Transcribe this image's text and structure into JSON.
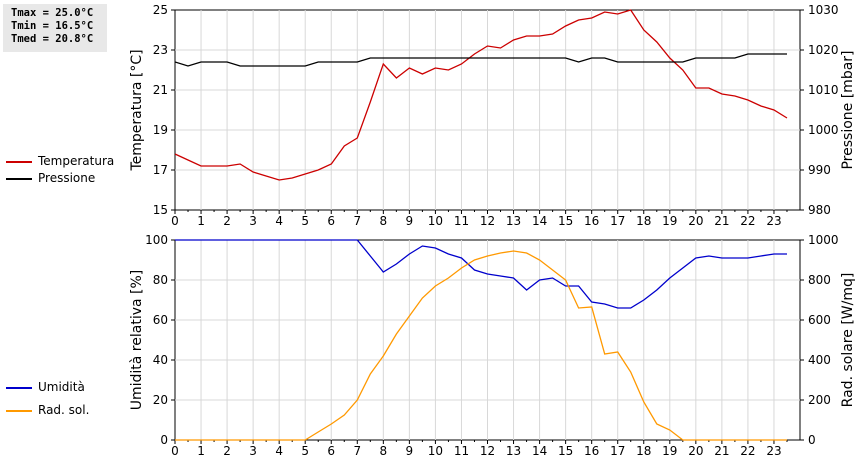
{
  "stats": {
    "tmax": "Tmax = 25.0°C",
    "tmin": "Tmin = 16.5°C",
    "tmed": "Tmed = 20.8°C"
  },
  "legend_top": [
    {
      "name": "Temperatura",
      "color": "#cc0000"
    },
    {
      "name": "Pressione",
      "color": "#000000"
    }
  ],
  "legend_bottom": [
    {
      "name": "Umidità",
      "color": "#0000cc"
    },
    {
      "name": "Rad. sol.",
      "color": "#ff9900"
    }
  ],
  "chart_data": [
    {
      "type": "line",
      "x": [
        0,
        0.5,
        1,
        1.5,
        2,
        2.5,
        3,
        3.5,
        4,
        4.5,
        5,
        5.5,
        6,
        6.5,
        7,
        7.5,
        8,
        8.5,
        9,
        9.5,
        10,
        10.5,
        11,
        11.5,
        12,
        12.5,
        13,
        13.5,
        14,
        14.5,
        15,
        15.5,
        16,
        16.5,
        17,
        17.5,
        18,
        18.5,
        19,
        19.5,
        20,
        20.5,
        21,
        21.5,
        22,
        22.5,
        23,
        23.5
      ],
      "xticks": [
        "0",
        "1",
        "2",
        "3",
        "4",
        "5",
        "6",
        "7",
        "8",
        "9",
        "10",
        "11",
        "12",
        "13",
        "14",
        "15",
        "16",
        "17",
        "18",
        "19",
        "20",
        "21",
        "22",
        "23"
      ],
      "ylabel": "Temperatura [°C]",
      "ylim": [
        15,
        25
      ],
      "yticks": [
        "15",
        "17",
        "19",
        "21",
        "23",
        "25"
      ],
      "y2label": "Pressione [mbar]",
      "y2lim": [
        980,
        1030
      ],
      "y2ticks": [
        "980",
        "990",
        "1000",
        "1010",
        "1020",
        "1030"
      ],
      "grid": true,
      "series": [
        {
          "name": "Temperatura",
          "axis": "left",
          "color": "#cc0000",
          "values": [
            17.8,
            17.5,
            17.2,
            17.2,
            17.2,
            17.3,
            16.9,
            16.7,
            16.5,
            16.6,
            16.8,
            17.0,
            17.3,
            18.2,
            18.6,
            20.4,
            22.3,
            21.6,
            22.1,
            21.8,
            22.1,
            22.0,
            22.3,
            22.8,
            23.2,
            23.1,
            23.5,
            23.7,
            23.7,
            23.8,
            24.2,
            24.5,
            24.6,
            24.9,
            24.8,
            25.0,
            24.0,
            23.4,
            22.6,
            22.0,
            21.1,
            21.1,
            20.8,
            20.7,
            20.5,
            20.2,
            20.0,
            19.6
          ]
        },
        {
          "name": "Pressione",
          "axis": "right",
          "color": "#000000",
          "values": [
            1017,
            1016,
            1017,
            1017,
            1017,
            1016,
            1016,
            1016,
            1016,
            1016,
            1016,
            1017,
            1017,
            1017,
            1017,
            1018,
            1018,
            1018,
            1018,
            1018,
            1018,
            1018,
            1018,
            1018,
            1018,
            1018,
            1018,
            1018,
            1018,
            1018,
            1018,
            1017,
            1018,
            1018,
            1017,
            1017,
            1017,
            1017,
            1017,
            1017,
            1018,
            1018,
            1018,
            1018,
            1019,
            1019,
            1019,
            1019
          ]
        }
      ]
    },
    {
      "type": "line",
      "x": [
        0,
        0.5,
        1,
        1.5,
        2,
        2.5,
        3,
        3.5,
        4,
        4.5,
        5,
        5.5,
        6,
        6.5,
        7,
        7.5,
        8,
        8.5,
        9,
        9.5,
        10,
        10.5,
        11,
        11.5,
        12,
        12.5,
        13,
        13.5,
        14,
        14.5,
        15,
        15.5,
        16,
        16.5,
        17,
        17.5,
        18,
        18.5,
        19,
        19.5,
        20,
        20.5,
        21,
        21.5,
        22,
        22.5,
        23,
        23.5
      ],
      "xticks": [
        "0",
        "1",
        "2",
        "3",
        "4",
        "5",
        "6",
        "7",
        "8",
        "9",
        "10",
        "11",
        "12",
        "13",
        "14",
        "15",
        "16",
        "17",
        "18",
        "19",
        "20",
        "21",
        "22",
        "23"
      ],
      "ylabel": "Umidità relativa [%]",
      "ylim": [
        0,
        100
      ],
      "yticks": [
        "0",
        "20",
        "40",
        "60",
        "80",
        "100"
      ],
      "y2label": "Rad. solare [W/mq]",
      "y2lim": [
        0,
        1000
      ],
      "y2ticks": [
        "0",
        "200",
        "400",
        "600",
        "800",
        "1000"
      ],
      "grid": true,
      "series": [
        {
          "name": "Umidità",
          "axis": "left",
          "color": "#0000cc",
          "values": [
            100,
            100,
            100,
            100,
            100,
            100,
            100,
            100,
            100,
            100,
            100,
            100,
            100,
            100,
            100,
            92,
            84,
            88,
            93,
            97,
            96,
            93,
            91,
            85,
            83,
            82,
            81,
            75,
            80,
            81,
            77,
            77,
            69,
            68,
            66,
            66,
            70,
            75,
            81,
            86,
            91,
            92,
            91,
            91,
            91,
            92,
            93,
            93
          ]
        },
        {
          "name": "Rad. sol.",
          "axis": "right",
          "color": "#ff9900",
          "values": [
            0,
            0,
            0,
            0,
            0,
            0,
            0,
            0,
            0,
            0,
            0,
            40,
            80,
            125,
            200,
            330,
            420,
            530,
            620,
            710,
            770,
            810,
            860,
            900,
            920,
            935,
            945,
            935,
            900,
            850,
            800,
            660,
            665,
            430,
            440,
            340,
            190,
            80,
            50,
            0,
            0,
            0,
            0,
            0,
            0,
            0,
            0,
            0
          ]
        }
      ]
    }
  ]
}
